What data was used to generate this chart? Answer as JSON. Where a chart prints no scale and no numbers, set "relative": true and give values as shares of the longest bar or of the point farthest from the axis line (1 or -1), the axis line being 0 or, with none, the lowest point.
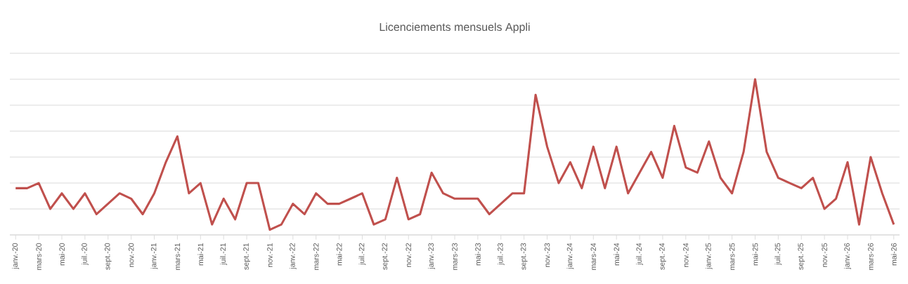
{
  "chart_data": {
    "type": "line",
    "title": "Licenciements mensuels  Appli",
    "relative": true,
    "grid": "y",
    "color": "#c0504d",
    "marker": "none",
    "line_style": "solid",
    "categories": [
      "janv.-20",
      null,
      "mars-20",
      null,
      "mai-20",
      null,
      "juil.-20",
      null,
      "sept.-20",
      null,
      "nov.-20",
      null,
      "janv.-21",
      null,
      "mars-21",
      null,
      "mai-21",
      null,
      "juil.-21",
      null,
      "sept.-21",
      null,
      "nov.-21",
      null,
      "janv.-22",
      null,
      "mars-22",
      null,
      "mai-22",
      null,
      "juil.-22",
      null,
      "sept.-22",
      null,
      "nov.-22",
      null,
      "janv.-23",
      null,
      "mars-23",
      null,
      "mai-23",
      null,
      "juil.-23",
      null,
      "sept.-23",
      null,
      "nov.-23",
      null,
      "janv.-24",
      null,
      "mars-24",
      null,
      "mai-24",
      null,
      "juil.-24",
      null,
      "sept.-24",
      null,
      "nov.-24",
      null,
      "janv.-25",
      null,
      "mars-25",
      null,
      "mai-25",
      null,
      "juil.-25",
      null,
      "sept.-25",
      null,
      "nov.-25",
      null,
      "janv.-26",
      null,
      "mars-26",
      null,
      "mai-26"
    ],
    "values": [
      0.3,
      0.3,
      0.333,
      0.167,
      0.267,
      0.167,
      0.267,
      0.133,
      0.2,
      0.267,
      0.233,
      0.133,
      0.267,
      0.467,
      0.633,
      0.267,
      0.333,
      0.067,
      0.233,
      0.1,
      0.333,
      0.333,
      0.033,
      0.067,
      0.2,
      0.133,
      0.267,
      0.2,
      0.2,
      0.233,
      0.267,
      0.067,
      0.1,
      0.367,
      0.1,
      0.133,
      0.4,
      0.267,
      0.233,
      0.233,
      0.233,
      0.133,
      0.2,
      0.267,
      0.267,
      0.9,
      0.567,
      0.333,
      0.467,
      0.3,
      0.567,
      0.3,
      0.567,
      0.267,
      0.4,
      0.533,
      0.367,
      0.7,
      0.433,
      0.4,
      0.6,
      0.367,
      0.267,
      0.533,
      1,
      0.533,
      0.367,
      0.333,
      0.3,
      0.367,
      0.167,
      0.233,
      0.467,
      0.067,
      0.5,
      0.267,
      0.067
    ]
  }
}
